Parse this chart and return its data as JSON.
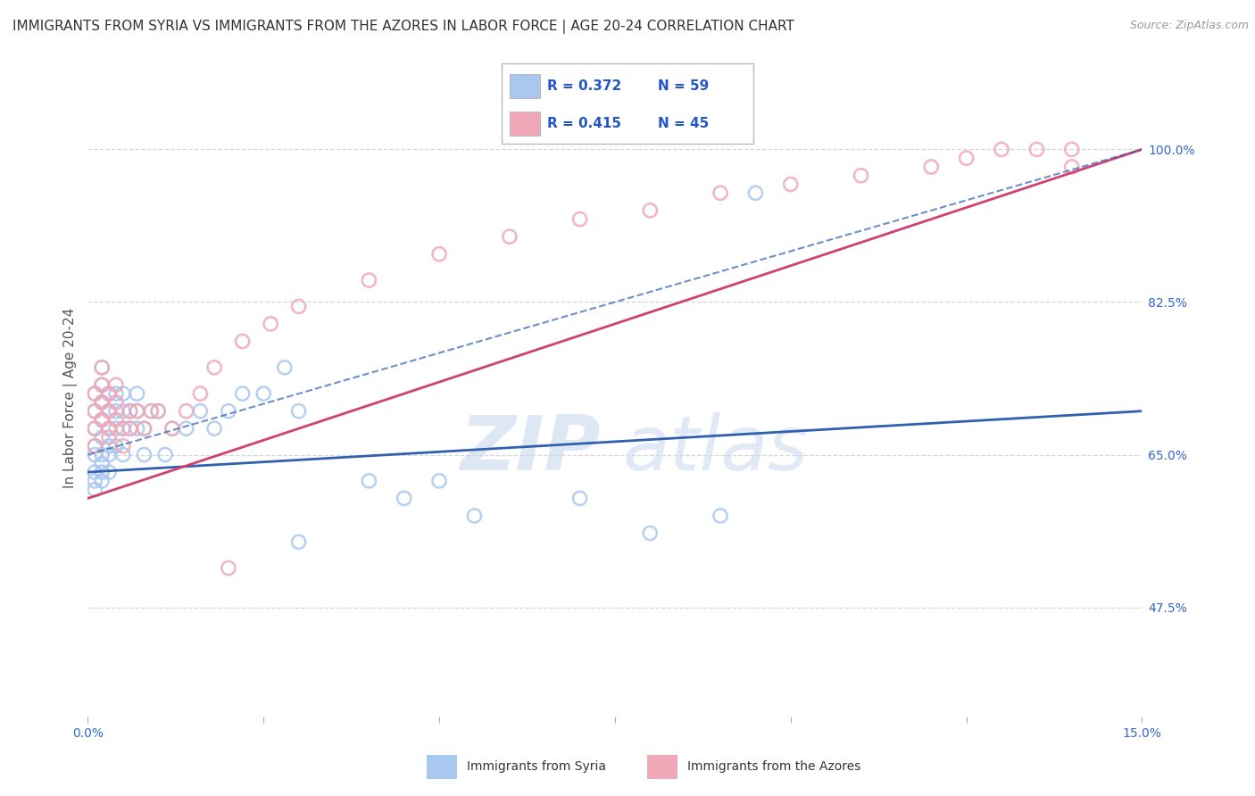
{
  "title": "IMMIGRANTS FROM SYRIA VS IMMIGRANTS FROM THE AZORES IN LABOR FORCE | AGE 20-24 CORRELATION CHART",
  "source": "Source: ZipAtlas.com",
  "ylabel": "In Labor Force | Age 20-24",
  "xlim": [
    0.0,
    0.15
  ],
  "ylim": [
    0.35,
    1.08
  ],
  "xticks": [
    0.0,
    0.025,
    0.05,
    0.075,
    0.1,
    0.125,
    0.15
  ],
  "xticklabels": [
    "0.0%",
    "",
    "",
    "",
    "",
    "",
    "15.0%"
  ],
  "yticks_right": [
    1.0,
    0.825,
    0.65,
    0.475
  ],
  "ytick_right_labels": [
    "100.0%",
    "82.5%",
    "65.0%",
    "47.5%"
  ],
  "legend_r1": "R = 0.372",
  "legend_n1": "N = 59",
  "legend_r2": "R = 0.415",
  "legend_n2": "N = 45",
  "color_syria": "#a8c8f0",
  "color_azores": "#f0a8b8",
  "color_trend_syria": "#3060b0",
  "color_trend_azores": "#d04070",
  "color_title": "#333333",
  "color_source": "#999999",
  "color_legend_text_rn": "#2255cc",
  "color_legend_label": "#333333",
  "color_axis_labels": "#3366cc",
  "grid_color": "#cccccc",
  "background_color": "#ffffff",
  "title_fontsize": 11,
  "axis_label_fontsize": 11,
  "tick_fontsize": 10,
  "syria_x": [
    0.001,
    0.001,
    0.001,
    0.001,
    0.001,
    0.001,
    0.001,
    0.001,
    0.002,
    0.002,
    0.002,
    0.002,
    0.002,
    0.002,
    0.002,
    0.002,
    0.002,
    0.003,
    0.003,
    0.003,
    0.003,
    0.003,
    0.003,
    0.004,
    0.004,
    0.004,
    0.004,
    0.005,
    0.005,
    0.005,
    0.005,
    0.006,
    0.006,
    0.007,
    0.007,
    0.007,
    0.008,
    0.008,
    0.009,
    0.01,
    0.011,
    0.012,
    0.014,
    0.016,
    0.018,
    0.02,
    0.022,
    0.025,
    0.028,
    0.03,
    0.03,
    0.04,
    0.045,
    0.05,
    0.055,
    0.07,
    0.08,
    0.09,
    0.095
  ],
  "syria_y": [
    0.72,
    0.7,
    0.68,
    0.66,
    0.65,
    0.63,
    0.62,
    0.61,
    0.75,
    0.73,
    0.71,
    0.69,
    0.67,
    0.65,
    0.64,
    0.63,
    0.62,
    0.72,
    0.7,
    0.68,
    0.66,
    0.65,
    0.63,
    0.72,
    0.7,
    0.68,
    0.66,
    0.72,
    0.7,
    0.68,
    0.65,
    0.7,
    0.68,
    0.72,
    0.7,
    0.68,
    0.68,
    0.65,
    0.7,
    0.7,
    0.65,
    0.68,
    0.68,
    0.7,
    0.68,
    0.7,
    0.72,
    0.72,
    0.75,
    0.7,
    0.55,
    0.62,
    0.6,
    0.62,
    0.58,
    0.6,
    0.56,
    0.58,
    0.95
  ],
  "azores_x": [
    0.001,
    0.001,
    0.001,
    0.001,
    0.002,
    0.002,
    0.002,
    0.002,
    0.003,
    0.003,
    0.003,
    0.003,
    0.004,
    0.004,
    0.004,
    0.005,
    0.005,
    0.006,
    0.006,
    0.007,
    0.008,
    0.009,
    0.01,
    0.012,
    0.014,
    0.016,
    0.018,
    0.022,
    0.026,
    0.03,
    0.04,
    0.05,
    0.06,
    0.07,
    0.08,
    0.09,
    0.1,
    0.11,
    0.12,
    0.125,
    0.13,
    0.135,
    0.14,
    0.14,
    0.02
  ],
  "azores_y": [
    0.72,
    0.7,
    0.68,
    0.66,
    0.75,
    0.73,
    0.71,
    0.69,
    0.72,
    0.7,
    0.68,
    0.67,
    0.73,
    0.71,
    0.69,
    0.68,
    0.66,
    0.7,
    0.68,
    0.7,
    0.68,
    0.7,
    0.7,
    0.68,
    0.7,
    0.72,
    0.75,
    0.78,
    0.8,
    0.82,
    0.85,
    0.88,
    0.9,
    0.92,
    0.93,
    0.95,
    0.96,
    0.97,
    0.98,
    0.99,
    1.0,
    1.0,
    1.0,
    0.98,
    0.52
  ]
}
